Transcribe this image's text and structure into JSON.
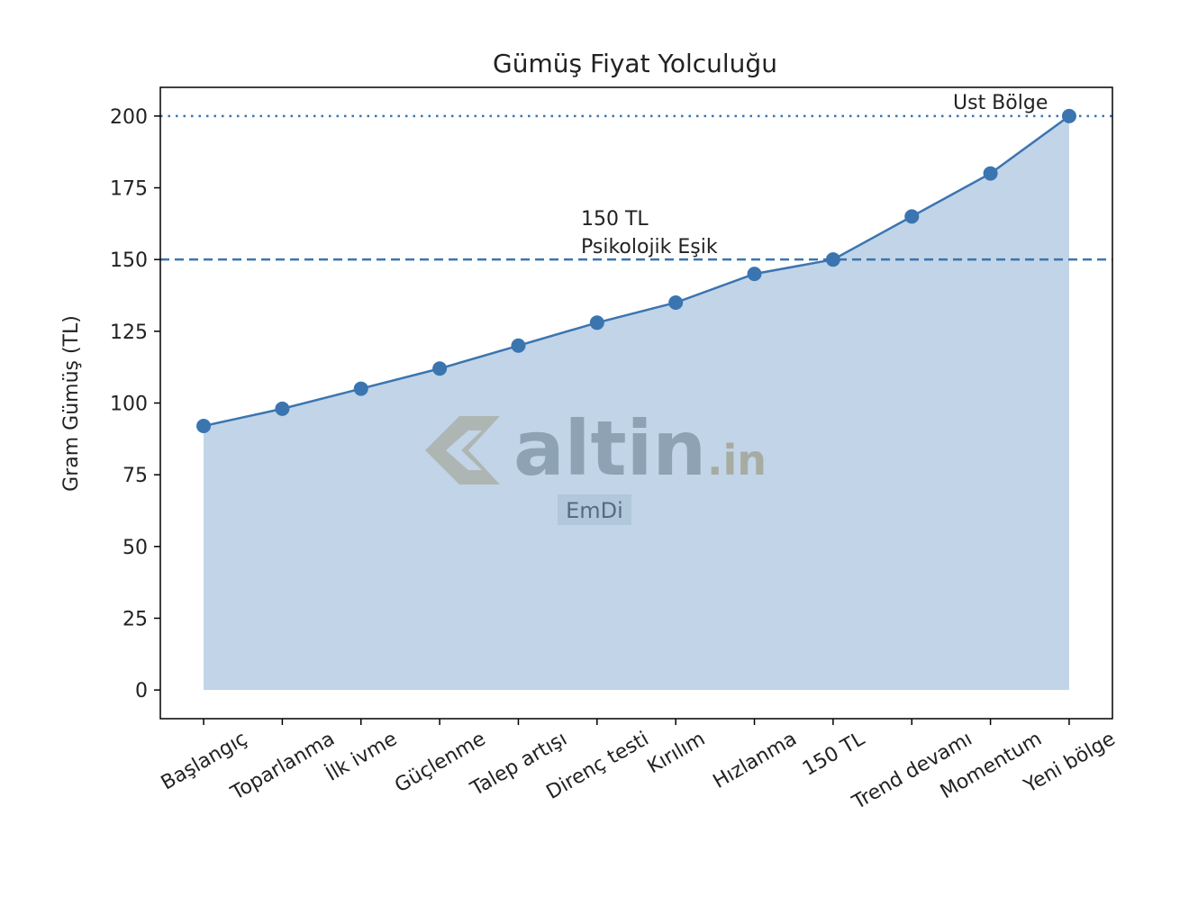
{
  "chart_data": {
    "type": "line",
    "title": "Gümüş Fiyat Yolculuğu",
    "y_label": "Gram Gümüş (TL)",
    "categories": [
      "Başlangıç",
      "Toparlanma",
      "İlk ivme",
      "Güçlenme",
      "Talep artışı",
      "Direnç testi",
      "Kırılım",
      "Hızlanma",
      "150 TL",
      "Trend devamı",
      "Momentum",
      "Yeni bölge"
    ],
    "series": [
      {
        "name": "Gram Gümüş",
        "color": "#3a75b0",
        "values": [
          92,
          98,
          105,
          112,
          120,
          128,
          135,
          145,
          150,
          165,
          180,
          200
        ]
      }
    ],
    "fill": true,
    "ylim": [
      -10,
      210
    ],
    "yticks": [
      0,
      25,
      50,
      75,
      100,
      125,
      150,
      175,
      200
    ],
    "hlines": [
      {
        "value": 150,
        "style": "dashed"
      },
      {
        "value": 200,
        "style": "dotted"
      }
    ],
    "annotations": [
      {
        "lines": [
          "150 TL",
          "Psikolojik Eşik"
        ]
      },
      {
        "lines": [
          "Ust Bölge"
        ]
      }
    ],
    "watermark": {
      "brand": "altin",
      "suffix": ".in",
      "author": "EmDi"
    }
  }
}
